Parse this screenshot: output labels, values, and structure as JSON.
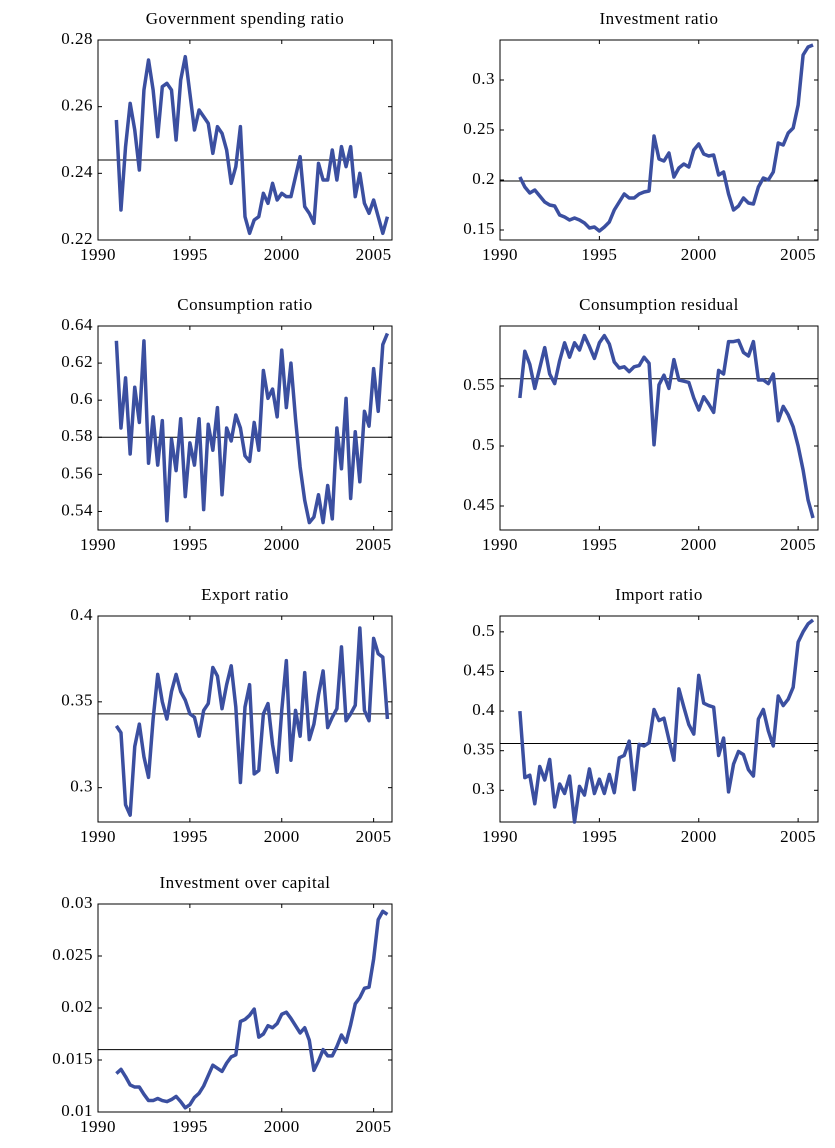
{
  "chart_data": [
    {
      "type": "line",
      "title": "Government spending ratio",
      "color": "#3b4fa0",
      "ref_color": "#000000",
      "x": [
        1991,
        1991.25,
        1991.5,
        1991.75,
        1992,
        1992.25,
        1992.5,
        1992.75,
        1993,
        1993.25,
        1993.5,
        1993.75,
        1994,
        1994.25,
        1994.5,
        1994.75,
        1995,
        1995.25,
        1995.5,
        1995.75,
        1996,
        1996.25,
        1996.5,
        1996.75,
        1997,
        1997.25,
        1997.5,
        1997.75,
        1998,
        1998.25,
        1998.5,
        1998.75,
        1999,
        1999.25,
        1999.5,
        1999.75,
        2000,
        2000.25,
        2000.5,
        2000.75,
        2001,
        2001.25,
        2001.5,
        2001.75,
        2002,
        2002.25,
        2002.5,
        2002.75,
        2003,
        2003.25,
        2003.5,
        2003.75,
        2004,
        2004.25,
        2004.5,
        2004.75,
        2005,
        2005.25,
        2005.5,
        2005.75
      ],
      "values": [
        0.256,
        0.229,
        0.248,
        0.261,
        0.253,
        0.241,
        0.265,
        0.274,
        0.265,
        0.251,
        0.266,
        0.267,
        0.265,
        0.25,
        0.268,
        0.275,
        0.264,
        0.253,
        0.259,
        0.257,
        0.255,
        0.246,
        0.254,
        0.252,
        0.247,
        0.237,
        0.242,
        0.254,
        0.227,
        0.222,
        0.226,
        0.227,
        0.234,
        0.231,
        0.237,
        0.232,
        0.234,
        0.233,
        0.233,
        0.239,
        0.245,
        0.23,
        0.228,
        0.225,
        0.243,
        0.238,
        0.238,
        0.247,
        0.238,
        0.248,
        0.242,
        0.248,
        0.233,
        0.24,
        0.231,
        0.228,
        0.232,
        0.227,
        0.222,
        0.227
      ],
      "mean_line": 0.244,
      "xlim": [
        1990,
        2006
      ],
      "xticks": [
        1990,
        1995,
        2000,
        2005
      ],
      "ylim": [
        0.22,
        0.28
      ],
      "yticks": [
        0.22,
        0.24,
        0.26,
        0.28
      ]
    },
    {
      "type": "line",
      "title": "Investment ratio",
      "color": "#3b4fa0",
      "ref_color": "#000000",
      "x": [
        1991,
        1991.25,
        1991.5,
        1991.75,
        1992,
        1992.25,
        1992.5,
        1992.75,
        1993,
        1993.25,
        1993.5,
        1993.75,
        1994,
        1994.25,
        1994.5,
        1994.75,
        1995,
        1995.25,
        1995.5,
        1995.75,
        1996,
        1996.25,
        1996.5,
        1996.75,
        1997,
        1997.25,
        1997.5,
        1997.75,
        1998,
        1998.25,
        1998.5,
        1998.75,
        1999,
        1999.25,
        1999.5,
        1999.75,
        2000,
        2000.25,
        2000.5,
        2000.75,
        2001,
        2001.25,
        2001.5,
        2001.75,
        2002,
        2002.25,
        2002.5,
        2002.75,
        2003,
        2003.25,
        2003.5,
        2003.75,
        2004,
        2004.25,
        2004.5,
        2004.75,
        2005,
        2005.25,
        2005.5,
        2005.75
      ],
      "values": [
        0.203,
        0.193,
        0.187,
        0.19,
        0.184,
        0.178,
        0.175,
        0.174,
        0.165,
        0.163,
        0.16,
        0.162,
        0.16,
        0.157,
        0.152,
        0.153,
        0.149,
        0.153,
        0.158,
        0.17,
        0.178,
        0.186,
        0.182,
        0.182,
        0.186,
        0.188,
        0.189,
        0.244,
        0.221,
        0.219,
        0.227,
        0.203,
        0.212,
        0.216,
        0.213,
        0.23,
        0.236,
        0.226,
        0.224,
        0.225,
        0.205,
        0.208,
        0.186,
        0.17,
        0.174,
        0.182,
        0.177,
        0.176,
        0.193,
        0.202,
        0.2,
        0.208,
        0.237,
        0.235,
        0.247,
        0.252,
        0.275,
        0.325,
        0.333,
        0.335
      ],
      "mean_line": 0.199,
      "xlim": [
        1990,
        2006
      ],
      "xticks": [
        1990,
        1995,
        2000,
        2005
      ],
      "ylim": [
        0.14,
        0.34
      ],
      "yticks": [
        0.15,
        0.2,
        0.25,
        0.3
      ]
    },
    {
      "type": "line",
      "title": "Consumption ratio",
      "color": "#3b4fa0",
      "ref_color": "#000000",
      "x": [
        1991,
        1991.25,
        1991.5,
        1991.75,
        1992,
        1992.25,
        1992.5,
        1992.75,
        1993,
        1993.25,
        1993.5,
        1993.75,
        1994,
        1994.25,
        1994.5,
        1994.75,
        1995,
        1995.25,
        1995.5,
        1995.75,
        1996,
        1996.25,
        1996.5,
        1996.75,
        1997,
        1997.25,
        1997.5,
        1997.75,
        1998,
        1998.25,
        1998.5,
        1998.75,
        1999,
        1999.25,
        1999.5,
        1999.75,
        2000,
        2000.25,
        2000.5,
        2000.75,
        2001,
        2001.25,
        2001.5,
        2001.75,
        2002,
        2002.25,
        2002.5,
        2002.75,
        2003,
        2003.25,
        2003.5,
        2003.75,
        2004,
        2004.25,
        2004.5,
        2004.75,
        2005,
        2005.25,
        2005.5,
        2005.75
      ],
      "values": [
        0.632,
        0.585,
        0.612,
        0.571,
        0.607,
        0.588,
        0.632,
        0.566,
        0.591,
        0.565,
        0.589,
        0.535,
        0.579,
        0.562,
        0.59,
        0.548,
        0.577,
        0.565,
        0.59,
        0.541,
        0.587,
        0.573,
        0.596,
        0.549,
        0.585,
        0.578,
        0.592,
        0.585,
        0.57,
        0.567,
        0.588,
        0.573,
        0.616,
        0.601,
        0.606,
        0.591,
        0.627,
        0.596,
        0.62,
        0.59,
        0.564,
        0.546,
        0.534,
        0.537,
        0.549,
        0.534,
        0.554,
        0.536,
        0.585,
        0.563,
        0.601,
        0.547,
        0.583,
        0.556,
        0.594,
        0.586,
        0.617,
        0.594,
        0.63,
        0.636
      ],
      "mean_line": 0.58,
      "xlim": [
        1990,
        2006
      ],
      "xticks": [
        1990,
        1995,
        2000,
        2005
      ],
      "ylim": [
        0.53,
        0.64
      ],
      "yticks": [
        0.54,
        0.56,
        0.58,
        0.6,
        0.62,
        0.64
      ]
    },
    {
      "type": "line",
      "title": "Consumption residual",
      "color": "#3b4fa0",
      "ref_color": "#000000",
      "x": [
        1991,
        1991.25,
        1991.5,
        1991.75,
        1992,
        1992.25,
        1992.5,
        1992.75,
        1993,
        1993.25,
        1993.5,
        1993.75,
        1994,
        1994.25,
        1994.5,
        1994.75,
        1995,
        1995.25,
        1995.5,
        1995.75,
        1996,
        1996.25,
        1996.5,
        1996.75,
        1997,
        1997.25,
        1997.5,
        1997.75,
        1998,
        1998.25,
        1998.5,
        1998.75,
        1999,
        1999.25,
        1999.5,
        1999.75,
        2000,
        2000.25,
        2000.5,
        2000.75,
        2001,
        2001.25,
        2001.5,
        2001.75,
        2002,
        2002.25,
        2002.5,
        2002.75,
        2003,
        2003.25,
        2003.5,
        2003.75,
        2004,
        2004.25,
        2004.5,
        2004.75,
        2005,
        2005.25,
        2005.5,
        2005.75
      ],
      "values": [
        0.54,
        0.579,
        0.568,
        0.548,
        0.565,
        0.582,
        0.56,
        0.552,
        0.571,
        0.586,
        0.574,
        0.586,
        0.58,
        0.592,
        0.583,
        0.573,
        0.586,
        0.592,
        0.585,
        0.57,
        0.565,
        0.566,
        0.562,
        0.566,
        0.567,
        0.574,
        0.569,
        0.501,
        0.551,
        0.559,
        0.548,
        0.572,
        0.555,
        0.554,
        0.553,
        0.54,
        0.53,
        0.541,
        0.535,
        0.528,
        0.563,
        0.56,
        0.587,
        0.587,
        0.588,
        0.578,
        0.575,
        0.587,
        0.555,
        0.555,
        0.552,
        0.56,
        0.521,
        0.533,
        0.526,
        0.516,
        0.5,
        0.48,
        0.455,
        0.44
      ],
      "mean_line": 0.556,
      "xlim": [
        1990,
        2006
      ],
      "xticks": [
        1990,
        1995,
        2000,
        2005
      ],
      "ylim": [
        0.43,
        0.6
      ],
      "yticks": [
        0.45,
        0.5,
        0.55
      ]
    },
    {
      "type": "line",
      "title": "Export ratio",
      "color": "#3b4fa0",
      "ref_color": "#000000",
      "x": [
        1991,
        1991.25,
        1991.5,
        1991.75,
        1992,
        1992.25,
        1992.5,
        1992.75,
        1993,
        1993.25,
        1993.5,
        1993.75,
        1994,
        1994.25,
        1994.5,
        1994.75,
        1995,
        1995.25,
        1995.5,
        1995.75,
        1996,
        1996.25,
        1996.5,
        1996.75,
        1997,
        1997.25,
        1997.5,
        1997.75,
        1998,
        1998.25,
        1998.5,
        1998.75,
        1999,
        1999.25,
        1999.5,
        1999.75,
        2000,
        2000.25,
        2000.5,
        2000.75,
        2001,
        2001.25,
        2001.5,
        2001.75,
        2002,
        2002.25,
        2002.5,
        2002.75,
        2003,
        2003.25,
        2003.5,
        2003.75,
        2004,
        2004.25,
        2004.5,
        2004.75,
        2005,
        2005.25,
        2005.5,
        2005.75
      ],
      "values": [
        0.336,
        0.332,
        0.29,
        0.284,
        0.324,
        0.337,
        0.318,
        0.306,
        0.34,
        0.366,
        0.35,
        0.34,
        0.356,
        0.366,
        0.356,
        0.351,
        0.343,
        0.341,
        0.33,
        0.345,
        0.349,
        0.37,
        0.365,
        0.346,
        0.36,
        0.371,
        0.347,
        0.303,
        0.347,
        0.36,
        0.308,
        0.31,
        0.343,
        0.349,
        0.325,
        0.309,
        0.345,
        0.374,
        0.316,
        0.345,
        0.33,
        0.367,
        0.328,
        0.337,
        0.354,
        0.368,
        0.335,
        0.341,
        0.346,
        0.382,
        0.339,
        0.343,
        0.348,
        0.393,
        0.345,
        0.339,
        0.387,
        0.378,
        0.376,
        0.34
      ],
      "mean_line": 0.343,
      "xlim": [
        1990,
        2006
      ],
      "xticks": [
        1990,
        1995,
        2000,
        2005
      ],
      "ylim": [
        0.28,
        0.4
      ],
      "yticks": [
        0.3,
        0.35,
        0.4
      ]
    },
    {
      "type": "line",
      "title": "Import ratio",
      "color": "#3b4fa0",
      "ref_color": "#000000",
      "x": [
        1991,
        1991.25,
        1991.5,
        1991.75,
        1992,
        1992.25,
        1992.5,
        1992.75,
        1993,
        1993.25,
        1993.5,
        1993.75,
        1994,
        1994.25,
        1994.5,
        1994.75,
        1995,
        1995.25,
        1995.5,
        1995.75,
        1996,
        1996.25,
        1996.5,
        1996.75,
        1997,
        1997.25,
        1997.5,
        1997.75,
        1998,
        1998.25,
        1998.5,
        1998.75,
        1999,
        1999.25,
        1999.5,
        1999.75,
        2000,
        2000.25,
        2000.5,
        2000.75,
        2001,
        2001.25,
        2001.5,
        2001.75,
        2002,
        2002.25,
        2002.5,
        2002.75,
        2003,
        2003.25,
        2003.5,
        2003.75,
        2004,
        2004.25,
        2004.5,
        2004.75,
        2005,
        2005.25,
        2005.5,
        2005.75
      ],
      "values": [
        0.4,
        0.316,
        0.319,
        0.283,
        0.33,
        0.313,
        0.339,
        0.279,
        0.308,
        0.296,
        0.318,
        0.26,
        0.305,
        0.294,
        0.327,
        0.296,
        0.314,
        0.296,
        0.32,
        0.297,
        0.341,
        0.344,
        0.362,
        0.301,
        0.358,
        0.356,
        0.36,
        0.402,
        0.388,
        0.391,
        0.364,
        0.338,
        0.428,
        0.405,
        0.383,
        0.371,
        0.445,
        0.41,
        0.407,
        0.405,
        0.344,
        0.366,
        0.298,
        0.333,
        0.349,
        0.345,
        0.326,
        0.318,
        0.39,
        0.402,
        0.375,
        0.356,
        0.419,
        0.407,
        0.415,
        0.43,
        0.487,
        0.5,
        0.51,
        0.515
      ],
      "mean_line": 0.359,
      "xlim": [
        1990,
        2006
      ],
      "xticks": [
        1990,
        1995,
        2000,
        2005
      ],
      "ylim": [
        0.26,
        0.52
      ],
      "yticks": [
        0.3,
        0.35,
        0.4,
        0.45,
        0.5
      ]
    },
    {
      "type": "line",
      "title": "Investment over capital",
      "color": "#3b4fa0",
      "ref_color": "#000000",
      "x": [
        1991,
        1991.25,
        1991.5,
        1991.75,
        1992,
        1992.25,
        1992.5,
        1992.75,
        1993,
        1993.25,
        1993.5,
        1993.75,
        1994,
        1994.25,
        1994.5,
        1994.75,
        1995,
        1995.25,
        1995.5,
        1995.75,
        1996,
        1996.25,
        1996.5,
        1996.75,
        1997,
        1997.25,
        1997.5,
        1997.75,
        1998,
        1998.25,
        1998.5,
        1998.75,
        1999,
        1999.25,
        1999.5,
        1999.75,
        2000,
        2000.25,
        2000.5,
        2000.75,
        2001,
        2001.25,
        2001.5,
        2001.75,
        2002,
        2002.25,
        2002.5,
        2002.75,
        2003,
        2003.25,
        2003.5,
        2003.75,
        2004,
        2004.25,
        2004.5,
        2004.75,
        2005,
        2005.25,
        2005.5,
        2005.75
      ],
      "values": [
        0.0137,
        0.0141,
        0.0134,
        0.0126,
        0.0124,
        0.0124,
        0.0117,
        0.0111,
        0.0111,
        0.0113,
        0.0111,
        0.011,
        0.0112,
        0.0115,
        0.011,
        0.0104,
        0.0107,
        0.0114,
        0.0118,
        0.0125,
        0.0135,
        0.0145,
        0.0142,
        0.0139,
        0.0147,
        0.0153,
        0.0155,
        0.0187,
        0.0189,
        0.0193,
        0.0199,
        0.0172,
        0.0175,
        0.0183,
        0.0181,
        0.0185,
        0.0194,
        0.0196,
        0.019,
        0.0183,
        0.0176,
        0.0181,
        0.0169,
        0.014,
        0.0149,
        0.016,
        0.0154,
        0.0154,
        0.0163,
        0.0174,
        0.0167,
        0.0184,
        0.0204,
        0.021,
        0.0219,
        0.022,
        0.0247,
        0.0285,
        0.0293,
        0.029
      ],
      "mean_line": 0.016,
      "xlim": [
        1990,
        2006
      ],
      "xticks": [
        1990,
        1995,
        2000,
        2005
      ],
      "ylim": [
        0.01,
        0.03
      ],
      "yticks": [
        0.01,
        0.015,
        0.02,
        0.025,
        0.03
      ]
    }
  ]
}
